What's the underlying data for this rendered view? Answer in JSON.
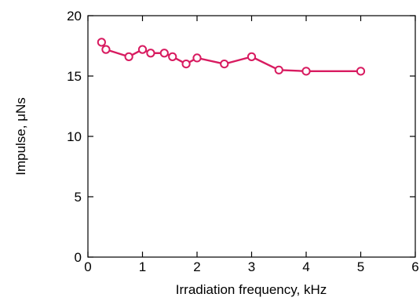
{
  "chart_data": {
    "type": "line",
    "title": "",
    "xlabel": "Irradiation frequency, kHz",
    "ylabel": "Impulse, μNs",
    "xlim": [
      0,
      6
    ],
    "ylim": [
      0,
      20
    ],
    "xticks": [
      0,
      1,
      2,
      3,
      4,
      5,
      6
    ],
    "yticks": [
      0,
      5,
      10,
      15,
      20
    ],
    "xtick_labels": [
      "0",
      "1",
      "2",
      "3",
      "4",
      "5",
      "6"
    ],
    "ytick_labels": [
      "0",
      "5",
      "10",
      "15",
      "20"
    ],
    "grid": false,
    "legend": "none",
    "series": [
      {
        "color": "#d81b60",
        "marker": "open-circle",
        "x": [
          0.25,
          0.33,
          0.75,
          1.0,
          1.15,
          1.4,
          1.55,
          1.8,
          2.0,
          2.5,
          3.0,
          3.5,
          4.0,
          5.0
        ],
        "y": [
          17.8,
          17.2,
          16.6,
          17.2,
          16.9,
          16.9,
          16.6,
          16.0,
          16.5,
          16.0,
          16.6,
          15.5,
          15.4,
          15.4
        ]
      }
    ]
  }
}
